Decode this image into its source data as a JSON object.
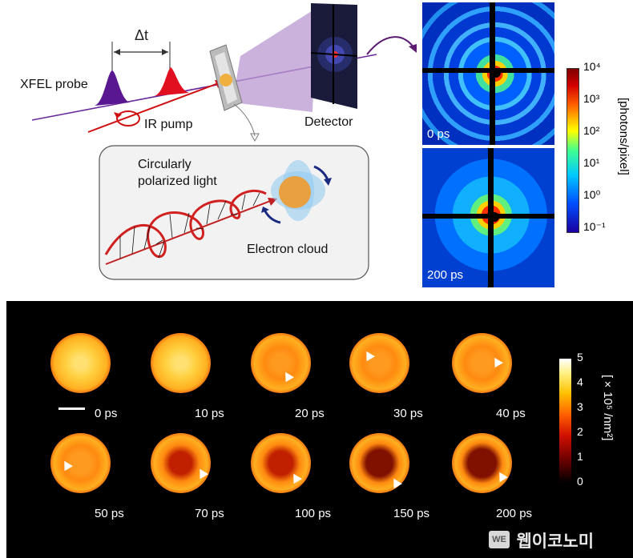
{
  "schematic": {
    "delay_label": "Δt",
    "probe_label": "XFEL probe",
    "pump_label": "IR pump",
    "detector_label": "Detector",
    "inset_title_line1": "Circularly",
    "inset_title_line2": "polarized light",
    "electron_cloud_label": "Electron cloud"
  },
  "diffraction": {
    "frames": [
      {
        "time_label": "0 ps"
      },
      {
        "time_label": "200 ps"
      }
    ],
    "colorbar": {
      "title": "[photons/pixel]",
      "ticks": [
        "10⁴",
        "10³",
        "10²",
        "10¹",
        "10⁰",
        "10⁻¹"
      ],
      "colormap": [
        "#1a00a0",
        "#0050ff",
        "#00c8ff",
        "#40ff90",
        "#ffff00",
        "#ff6000",
        "#d00000",
        "#800000"
      ]
    }
  },
  "density_maps": {
    "frames": [
      {
        "time_label": "0 ps",
        "hole_strength": 0.0,
        "arrow": false
      },
      {
        "time_label": "10 ps",
        "hole_strength": 0.0,
        "arrow": false
      },
      {
        "time_label": "20 ps",
        "hole_strength": 0.2,
        "arrow": true
      },
      {
        "time_label": "30 ps",
        "hole_strength": 0.3,
        "arrow": true
      },
      {
        "time_label": "40 ps",
        "hole_strength": 0.35,
        "arrow": true
      },
      {
        "time_label": "50 ps",
        "hole_strength": 0.45,
        "arrow": true
      },
      {
        "time_label": "70 ps",
        "hole_strength": 0.55,
        "arrow": true
      },
      {
        "time_label": "100 ps",
        "hole_strength": 0.65,
        "arrow": true
      },
      {
        "time_label": "150 ps",
        "hole_strength": 0.8,
        "arrow": true
      },
      {
        "time_label": "200 ps",
        "hole_strength": 0.9,
        "arrow": true
      }
    ],
    "colorbar": {
      "title": "[×10⁵ /nm²]",
      "ticks": [
        "5",
        "4",
        "3",
        "2",
        "1",
        "0"
      ],
      "colormap": [
        "#000000",
        "#6a0000",
        "#d01000",
        "#ff6000",
        "#ffc000",
        "#fff080",
        "#ffffff"
      ]
    }
  },
  "watermark": "웹이코노미",
  "colors": {
    "probe_pulse": "#5a1890",
    "pump_pulse": "#e01020",
    "beam_line": "#6a2a9a",
    "detector_cone": "#b898d0",
    "helix": "#d02020",
    "cloud_blue": "#8ec8f0",
    "cloud_core": "#e8a040"
  }
}
